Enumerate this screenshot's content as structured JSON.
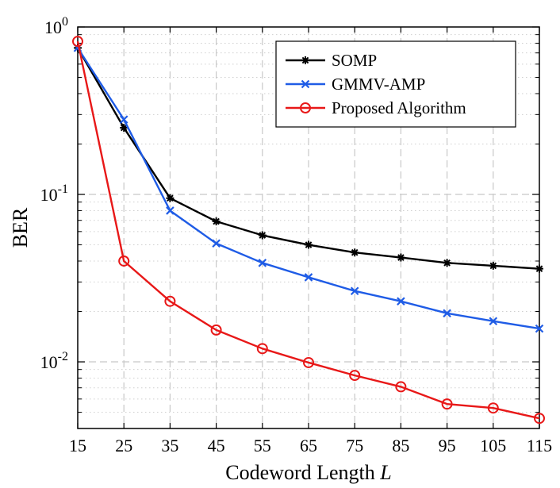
{
  "chart_data": {
    "type": "line",
    "title": "",
    "xlabel_text": "Codeword Length ",
    "xlabel_var": "L",
    "ylabel": "BER",
    "xlim": [
      15,
      115
    ],
    "ylim": [
      0.004,
      1
    ],
    "yscale": "log",
    "x": [
      15,
      25,
      35,
      45,
      55,
      65,
      75,
      85,
      95,
      105,
      115
    ],
    "x_tick_labels": [
      "15",
      "25",
      "35",
      "45",
      "55",
      "65",
      "75",
      "85",
      "95",
      "105",
      "115"
    ],
    "y_tick_labels": [
      {
        "base": "10",
        "exp": "0",
        "value": 1
      },
      {
        "base": "10",
        "exp": "-1",
        "value": 0.1
      },
      {
        "base": "10",
        "exp": "-2",
        "value": 0.01
      }
    ],
    "grid": true,
    "legend_position": "top-right",
    "series": [
      {
        "name": "SOMP",
        "color": "#000000",
        "marker": "star",
        "values": [
          0.75,
          0.25,
          0.095,
          0.069,
          0.057,
          0.05,
          0.045,
          0.042,
          0.039,
          0.0375,
          0.036
        ]
      },
      {
        "name": "GMMV-AMP",
        "color": "#1f5ce6",
        "marker": "x",
        "values": [
          0.75,
          0.28,
          0.08,
          0.051,
          0.039,
          0.032,
          0.0265,
          0.023,
          0.0195,
          0.0175,
          0.0158
        ]
      },
      {
        "name": "Proposed Algorithm",
        "color": "#e81818",
        "marker": "circle",
        "values": [
          0.82,
          0.04,
          0.023,
          0.0155,
          0.012,
          0.0099,
          0.0083,
          0.0071,
          0.0056,
          0.0053,
          0.0046
        ]
      }
    ]
  }
}
